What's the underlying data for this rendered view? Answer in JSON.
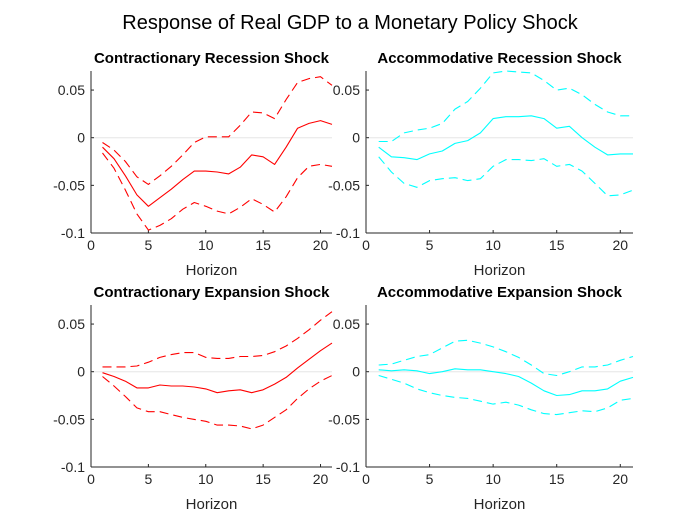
{
  "figure": {
    "title": "Response of Real GDP to a Monetary Policy Shock"
  },
  "chart_data": [
    {
      "type": "line",
      "title": "Contractionary Recession Shock",
      "xlabel": "Horizon",
      "ylabel": "",
      "xlim": [
        0,
        21
      ],
      "ylim": [
        -0.1,
        0.07
      ],
      "xticks": [
        "0",
        "5",
        "10",
        "15",
        "20"
      ],
      "yticks": [
        "-0.1",
        "-0.05",
        "0",
        "0.05"
      ],
      "color": "#ff0000",
      "zero_line": true,
      "x": [
        1,
        2,
        3,
        4,
        5,
        6,
        7,
        8,
        9,
        10,
        11,
        12,
        13,
        14,
        15,
        16,
        17,
        18,
        19,
        20,
        21
      ],
      "series": [
        {
          "style": "solid",
          "values": [
            -0.01,
            -0.022,
            -0.04,
            -0.06,
            -0.072,
            -0.063,
            -0.054,
            -0.044,
            -0.035,
            -0.035,
            -0.036,
            -0.038,
            -0.031,
            -0.018,
            -0.02,
            -0.028,
            -0.01,
            0.01,
            0.015,
            0.018,
            0.014
          ]
        },
        {
          "style": "dashed",
          "values": [
            -0.005,
            -0.013,
            -0.025,
            -0.041,
            -0.049,
            -0.04,
            -0.03,
            -0.018,
            -0.005,
            0.001,
            0.001,
            0.001,
            0.013,
            0.027,
            0.026,
            0.02,
            0.04,
            0.058,
            0.062,
            0.064,
            0.055
          ]
        },
        {
          "style": "dashed",
          "values": [
            -0.016,
            -0.032,
            -0.055,
            -0.08,
            -0.097,
            -0.092,
            -0.085,
            -0.075,
            -0.068,
            -0.072,
            -0.077,
            -0.08,
            -0.073,
            -0.064,
            -0.07,
            -0.078,
            -0.062,
            -0.042,
            -0.03,
            -0.028,
            -0.03
          ]
        }
      ]
    },
    {
      "type": "line",
      "title": "Accommodative Recession Shock",
      "xlabel": "Horizon",
      "ylabel": "",
      "xlim": [
        0,
        21
      ],
      "ylim": [
        -0.1,
        0.07
      ],
      "xticks": [
        "0",
        "5",
        "10",
        "15",
        "20"
      ],
      "yticks": [
        "-0.1",
        "-0.05",
        "0",
        "0.05"
      ],
      "color": "#00ffff",
      "zero_line": true,
      "x": [
        1,
        2,
        3,
        4,
        5,
        6,
        7,
        8,
        9,
        10,
        11,
        12,
        13,
        14,
        15,
        16,
        17,
        18,
        19,
        20,
        21
      ],
      "series": [
        {
          "style": "solid",
          "values": [
            -0.01,
            -0.02,
            -0.021,
            -0.023,
            -0.017,
            -0.014,
            -0.006,
            -0.003,
            0.005,
            0.02,
            0.022,
            0.022,
            0.023,
            0.02,
            0.01,
            0.012,
            0.0,
            -0.01,
            -0.018,
            -0.017,
            -0.017
          ]
        },
        {
          "style": "dashed",
          "values": [
            -0.004,
            -0.004,
            0.005,
            0.008,
            0.01,
            0.015,
            0.03,
            0.038,
            0.052,
            0.068,
            0.07,
            0.069,
            0.068,
            0.06,
            0.05,
            0.052,
            0.045,
            0.035,
            0.027,
            0.023,
            0.023
          ]
        },
        {
          "style": "dashed",
          "values": [
            -0.02,
            -0.036,
            -0.048,
            -0.052,
            -0.045,
            -0.043,
            -0.042,
            -0.045,
            -0.043,
            -0.03,
            -0.023,
            -0.023,
            -0.024,
            -0.022,
            -0.03,
            -0.028,
            -0.035,
            -0.048,
            -0.061,
            -0.06,
            -0.055
          ]
        }
      ]
    },
    {
      "type": "line",
      "title": "Contractionary Expansion Shock",
      "xlabel": "Horizon",
      "ylabel": "",
      "xlim": [
        0,
        21
      ],
      "ylim": [
        -0.1,
        0.07
      ],
      "xticks": [
        "0",
        "5",
        "10",
        "15",
        "20"
      ],
      "yticks": [
        "-0.1",
        "-0.05",
        "0",
        "0.05"
      ],
      "color": "#ff0000",
      "zero_line": true,
      "x": [
        1,
        2,
        3,
        4,
        5,
        6,
        7,
        8,
        9,
        10,
        11,
        12,
        13,
        14,
        15,
        16,
        17,
        18,
        19,
        20,
        21
      ],
      "series": [
        {
          "style": "solid",
          "values": [
            -0.001,
            -0.005,
            -0.01,
            -0.017,
            -0.017,
            -0.014,
            -0.015,
            -0.015,
            -0.016,
            -0.018,
            -0.022,
            -0.02,
            -0.019,
            -0.022,
            -0.019,
            -0.013,
            -0.006,
            0.004,
            0.013,
            0.022,
            0.03
          ]
        },
        {
          "style": "dashed",
          "values": [
            0.005,
            0.005,
            0.005,
            0.006,
            0.01,
            0.015,
            0.018,
            0.02,
            0.02,
            0.015,
            0.014,
            0.014,
            0.016,
            0.016,
            0.017,
            0.021,
            0.027,
            0.035,
            0.044,
            0.054,
            0.063
          ]
        },
        {
          "style": "dashed",
          "values": [
            -0.005,
            -0.015,
            -0.026,
            -0.038,
            -0.042,
            -0.042,
            -0.045,
            -0.048,
            -0.05,
            -0.052,
            -0.056,
            -0.056,
            -0.057,
            -0.06,
            -0.056,
            -0.048,
            -0.04,
            -0.028,
            -0.018,
            -0.01,
            -0.004
          ]
        }
      ]
    },
    {
      "type": "line",
      "title": "Accommodative Expansion Shock",
      "xlabel": "Horizon",
      "ylabel": "",
      "xlim": [
        0,
        21
      ],
      "ylim": [
        -0.1,
        0.07
      ],
      "xticks": [
        "0",
        "5",
        "10",
        "15",
        "20"
      ],
      "yticks": [
        "-0.1",
        "-0.05",
        "0",
        "0.05"
      ],
      "color": "#00ffff",
      "zero_line": true,
      "x": [
        1,
        2,
        3,
        4,
        5,
        6,
        7,
        8,
        9,
        10,
        11,
        12,
        13,
        14,
        15,
        16,
        17,
        18,
        19,
        20,
        21
      ],
      "series": [
        {
          "style": "solid",
          "values": [
            0.002,
            0.001,
            0.002,
            0.001,
            -0.002,
            0.0,
            0.003,
            0.002,
            0.002,
            0.0,
            -0.002,
            -0.005,
            -0.012,
            -0.02,
            -0.025,
            -0.024,
            -0.02,
            -0.02,
            -0.018,
            -0.01,
            -0.006
          ]
        },
        {
          "style": "dashed",
          "values": [
            0.007,
            0.008,
            0.012,
            0.016,
            0.018,
            0.025,
            0.032,
            0.033,
            0.03,
            0.026,
            0.021,
            0.015,
            0.007,
            -0.002,
            -0.004,
            0.0,
            0.005,
            0.005,
            0.007,
            0.012,
            0.016
          ]
        },
        {
          "style": "dashed",
          "values": [
            -0.004,
            -0.008,
            -0.012,
            -0.018,
            -0.022,
            -0.025,
            -0.027,
            -0.028,
            -0.031,
            -0.034,
            -0.032,
            -0.035,
            -0.04,
            -0.044,
            -0.045,
            -0.043,
            -0.041,
            -0.042,
            -0.038,
            -0.03,
            -0.028
          ]
        }
      ]
    }
  ]
}
